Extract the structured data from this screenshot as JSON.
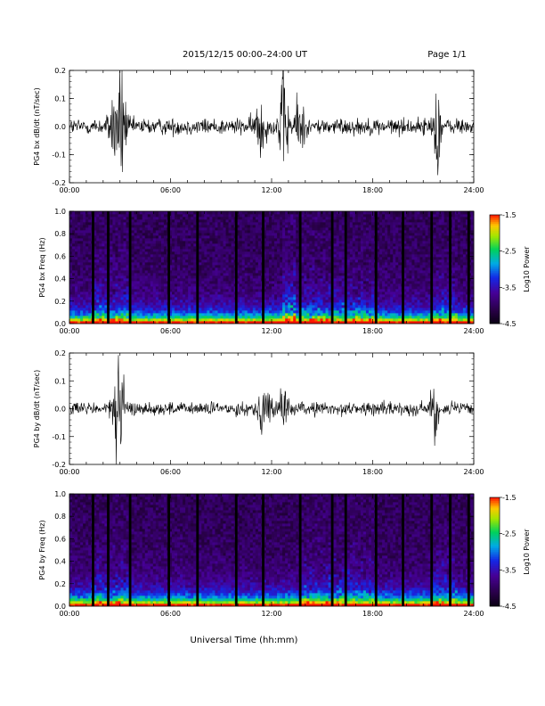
{
  "header": {
    "title": "2015/12/15  00:00–24:00 UT",
    "page": "Page 1/1"
  },
  "footer": {
    "xlabel": "Universal Time (hh:mm)"
  },
  "chart_data": [
    {
      "type": "line",
      "ylabel": "PG4 bx dB/dt (nT/sec)",
      "xlim": [
        0,
        24
      ],
      "ylim": [
        -0.2,
        0.2
      ],
      "x_tick_labels": [
        "00:00",
        "06:00",
        "12:00",
        "18:00",
        "24:00"
      ],
      "y_tick_labels": [
        "0.2",
        "0.1",
        "0.0",
        "-0.1",
        "-0.2"
      ],
      "grid": false,
      "bursts": [
        {
          "t": 2.8,
          "amp": 0.16,
          "w": 0.35
        },
        {
          "t": 3.2,
          "amp": 0.13,
          "w": 0.2
        },
        {
          "t": 11.3,
          "amp": 0.1,
          "w": 0.3
        },
        {
          "t": 12.7,
          "amp": 0.19,
          "w": 0.25
        },
        {
          "t": 13.6,
          "amp": 0.1,
          "w": 0.3
        },
        {
          "t": 21.8,
          "amp": 0.17,
          "w": 0.2
        }
      ],
      "noise_level": 0.028
    },
    {
      "type": "heatmap",
      "ylabel": "PG4 bx Freq (Hz)",
      "xlim": [
        0,
        24
      ],
      "ylim": [
        0,
        1.0
      ],
      "x_tick_labels": [
        "00:00",
        "06:00",
        "12:00",
        "18:00",
        "24:00"
      ],
      "y_tick_labels": [
        "1.0",
        "0.8",
        "0.6",
        "0.4",
        "0.2",
        "0.0"
      ],
      "colorbar": {
        "label": "Log10 Power",
        "ticks": [
          "-1.5",
          "-2.5",
          "-3.5",
          "-4.5"
        ],
        "range": [
          -4.5,
          -1.5
        ]
      },
      "data_gaps_hours": [
        1.4,
        2.3,
        3.6,
        5.9,
        7.6,
        9.9,
        11.5,
        13.7,
        15.6,
        16.4,
        18.2,
        19.8,
        21.5,
        22.6,
        23.7
      ],
      "activity_regions": [
        {
          "t0": 1.3,
          "t1": 3.6,
          "level": 0.55
        },
        {
          "t0": 12.6,
          "t1": 13.4,
          "level": 0.9
        },
        {
          "t0": 13.8,
          "t1": 18.0,
          "level": 0.5
        },
        {
          "t0": 21.4,
          "t1": 23.0,
          "level": 0.5
        }
      ]
    },
    {
      "type": "line",
      "ylabel": "PG4 by dB/dt (nT/sec)",
      "xlim": [
        0,
        24
      ],
      "ylim": [
        -0.2,
        0.2
      ],
      "x_tick_labels": [
        "00:00",
        "06:00",
        "12:00",
        "18:00",
        "24:00"
      ],
      "y_tick_labels": [
        "0.2",
        "0.1",
        "0.0",
        "-0.1",
        "-0.2"
      ],
      "grid": false,
      "bursts": [
        {
          "t": 2.9,
          "amp": 0.15,
          "w": 0.35
        },
        {
          "t": 11.6,
          "amp": 0.07,
          "w": 0.4
        },
        {
          "t": 12.8,
          "amp": 0.07,
          "w": 0.3
        },
        {
          "t": 21.7,
          "amp": 0.16,
          "w": 0.2
        }
      ],
      "noise_level": 0.022
    },
    {
      "type": "heatmap",
      "ylabel": "PG4 by Freq (Hz)",
      "xlim": [
        0,
        24
      ],
      "ylim": [
        0,
        1.0
      ],
      "x_tick_labels": [
        "00:00",
        "06:00",
        "12:00",
        "18:00",
        "24:00"
      ],
      "y_tick_labels": [
        "1.0",
        "0.8",
        "0.6",
        "0.4",
        "0.2",
        "0.0"
      ],
      "colorbar": {
        "label": "Log10 Power",
        "ticks": [
          "-1.5",
          "-2.5",
          "-3.5",
          "-4.5"
        ],
        "range": [
          -4.5,
          -1.5
        ]
      },
      "data_gaps_hours": [
        1.4,
        2.3,
        3.6,
        5.9,
        7.6,
        9.9,
        11.5,
        13.7,
        15.6,
        16.4,
        18.2,
        19.8,
        21.5,
        22.6,
        23.7
      ],
      "activity_regions": [
        {
          "t0": 1.3,
          "t1": 3.6,
          "level": 0.5
        },
        {
          "t0": 13.8,
          "t1": 18.0,
          "level": 0.5
        },
        {
          "t0": 21.4,
          "t1": 23.0,
          "level": 0.55
        }
      ]
    }
  ]
}
